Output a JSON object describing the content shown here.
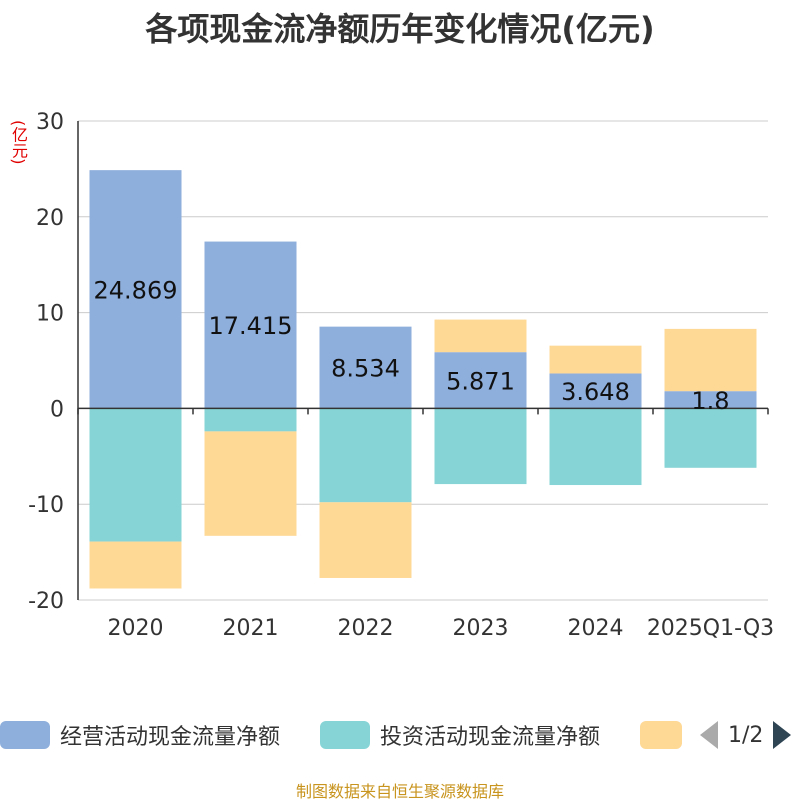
{
  "chart_data": {
    "type": "bar",
    "stacked": true,
    "title": "各项现金流净额历年变化情况(亿元)",
    "ylabel": "(亿元)",
    "ylim": [
      -20,
      30
    ],
    "yticks": [
      30,
      20,
      10,
      0,
      -10,
      -20
    ],
    "categories": [
      "2020",
      "2021",
      "2022",
      "2023",
      "2024",
      "2025Q1-Q3"
    ],
    "series": [
      {
        "name": "经营活动现金流量净额",
        "color": "#8eaedb",
        "values": [
          24.869,
          17.415,
          8.534,
          5.871,
          3.648,
          1.8
        ],
        "labels": [
          "24.869",
          "17.415",
          "8.534",
          "5.871",
          "3.648",
          "1.8"
        ]
      },
      {
        "name": "投资活动现金流量净额",
        "color": "#86d4d6",
        "values": [
          -13.9,
          -2.4,
          -9.8,
          -7.9,
          -8.0,
          -6.2
        ]
      },
      {
        "name": "",
        "color": "#fed895",
        "values": [
          -4.9,
          -10.9,
          -7.9,
          3.4,
          2.9,
          6.5
        ]
      }
    ]
  },
  "legend": {
    "items": [
      "经营活动现金流量净额",
      "投资活动现金流量净额",
      ""
    ],
    "page": "1/2"
  },
  "footer": "制图数据来自恒生聚源数据库"
}
